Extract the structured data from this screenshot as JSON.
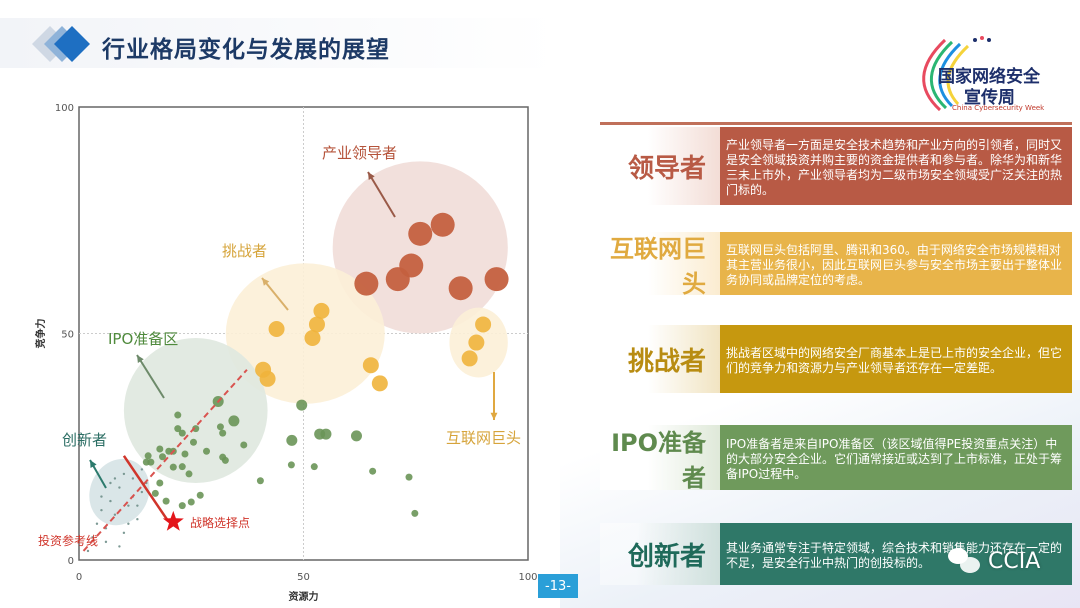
{
  "header": {
    "title": "行业格局变化与发展的展望"
  },
  "logo": {
    "cn_line1": "国家网络安全",
    "cn_line2": "宣传周",
    "en": "China Cybersecurity Week"
  },
  "panels": [
    {
      "label": "领导者",
      "color": "#b85a45",
      "label_color": "#b85a45",
      "text": "产业领导者一方面是安全技术趋势和产业方向的引领者，同时又是安全领域投资并购主要的资金提供者和参与者。除华为和新华三未上市外，产业领导者均为二级市场安全领域受广泛关注的热门标的。"
    },
    {
      "label": "互联网巨头",
      "color": "#e8b44a",
      "label_color": "#e0aa40",
      "text": "互联网巨头包括阿里、腾讯和360。由于网络安全市场规模相对其主营业务很小，因此互联网巨头参与安全市场主要出于整体业务协同或品牌定位的考虑。"
    },
    {
      "label": "挑战者",
      "color": "#c6980f",
      "label_color": "#b88c12",
      "text": "挑战者区域中的网络安全厂商基本上是已上市的安全企业，但它们的竞争力和资源力与产业领导者还存在一定差距。"
    },
    {
      "label": "IPO准备者",
      "color": "#6f9a5c",
      "label_color": "#5f8a4e",
      "text": "IPO准备者是来自IPO准备区（该区域值得PE投资重点关注）中的大部分安全企业。它们通常接近或达到了上市标准，正处于筹备IPO过程中。"
    },
    {
      "label": "创新者",
      "color": "#2f7868",
      "label_color": "#1f6a5a",
      "text": "其业务通常专注于特定领域，综合技术和销售能力还存在一定的不足，是安全行业中热门的创投标的。"
    }
  ],
  "page_number": "-13-",
  "watermark": "CCIA",
  "chart_data": {
    "type": "scatter",
    "xlabel": "资源力",
    "ylabel": "竞争力",
    "xlim": [
      0,
      100
    ],
    "ylim": [
      0,
      100
    ],
    "xticks": [
      "0",
      "50",
      "100"
    ],
    "yticks": [
      "0",
      "50",
      "100"
    ],
    "grid": "dashed lines at 50",
    "series": [
      {
        "group": "leaders",
        "color": "#c4603f",
        "size": "large",
        "points": [
          [
            64,
            61
          ],
          [
            71,
            62
          ],
          [
            74,
            65
          ],
          [
            76,
            72
          ],
          [
            81,
            74
          ],
          [
            85,
            60
          ],
          [
            93,
            62
          ]
        ]
      },
      {
        "group": "challengers",
        "color": "#f0b43c",
        "size": "medium",
        "points": [
          [
            44,
            51
          ],
          [
            54,
            55
          ],
          [
            53,
            52
          ],
          [
            52,
            49
          ],
          [
            41,
            42
          ],
          [
            42,
            40
          ],
          [
            65,
            43
          ],
          [
            67,
            39
          ]
        ]
      },
      {
        "group": "internet_giants",
        "color": "#f0b43c",
        "size": "medium",
        "points": [
          [
            90,
            52
          ],
          [
            88.5,
            48
          ],
          [
            87,
            44.5
          ]
        ]
      },
      {
        "group": "ipo_ready",
        "color": "#6a9558",
        "size": "small",
        "points": [
          [
            31,
            35
          ],
          [
            22,
            32
          ],
          [
            22,
            29
          ],
          [
            23,
            28
          ],
          [
            26,
            29
          ],
          [
            31.5,
            29.4
          ],
          [
            32,
            28
          ],
          [
            34.5,
            30.7
          ],
          [
            36.7,
            25.4
          ],
          [
            25.5,
            26
          ],
          [
            28.4,
            24
          ],
          [
            18,
            24.5
          ],
          [
            20,
            24
          ],
          [
            21,
            24
          ],
          [
            18.6,
            22.8
          ],
          [
            15.4,
            23
          ],
          [
            15,
            21.6
          ],
          [
            16,
            21.6
          ],
          [
            23.6,
            23.4
          ],
          [
            21,
            20.5
          ],
          [
            23,
            20.6
          ],
          [
            24.5,
            19
          ],
          [
            32,
            22.7
          ],
          [
            32.6,
            22
          ],
          [
            40.4,
            17.5
          ],
          [
            18,
            17
          ],
          [
            17,
            14.7
          ],
          [
            19.4,
            13
          ],
          [
            23,
            12
          ],
          [
            25,
            12.8
          ],
          [
            27,
            14.3
          ],
          [
            47.4,
            26.4
          ],
          [
            53.6,
            27.8
          ],
          [
            55,
            27.8
          ],
          [
            61.8,
            27.4
          ],
          [
            47.3,
            21
          ],
          [
            52.4,
            20.6
          ],
          [
            65.4,
            19.6
          ],
          [
            73.5,
            18.3
          ],
          [
            74.8,
            10.3
          ],
          [
            49.6,
            34.2
          ]
        ]
      },
      {
        "group": "innovators",
        "color": "#6f8f8a",
        "size": "tiny",
        "points": [
          [
            3,
            5
          ],
          [
            4,
            8
          ],
          [
            5,
            11
          ],
          [
            6,
            7
          ],
          [
            7,
            13
          ],
          [
            8,
            10
          ],
          [
            9,
            16
          ],
          [
            10,
            6
          ],
          [
            11,
            12
          ],
          [
            12,
            18
          ],
          [
            13,
            9
          ],
          [
            14,
            15
          ],
          [
            5,
            14
          ],
          [
            8,
            18
          ],
          [
            10,
            19
          ],
          [
            12,
            14
          ],
          [
            15,
            17
          ],
          [
            6,
            4
          ],
          [
            9,
            3
          ],
          [
            14,
            20
          ],
          [
            2,
            2
          ],
          [
            11,
            8
          ],
          [
            13,
            12
          ],
          [
            7,
            17
          ]
        ]
      }
    ],
    "regions": [
      {
        "group": "leaders",
        "cx": 76,
        "cy": 69,
        "rx": 19.5,
        "ry": 19,
        "color": "#f1ddd8"
      },
      {
        "group": "challengers",
        "cx": 50.4,
        "cy": 50,
        "rx": 17.7,
        "ry": 15.5,
        "color": "#fcefd7"
      },
      {
        "group": "internet_giants",
        "cx": 89,
        "cy": 48,
        "rx": 6.5,
        "ry": 7.7,
        "color": "#fcefd7"
      },
      {
        "group": "ipo_ready",
        "cx": 26,
        "cy": 33,
        "rx": 16,
        "ry": 16,
        "color": "#dfe8df"
      },
      {
        "group": "innovators",
        "cx": 9,
        "cy": 15,
        "rx": 6.5,
        "ry": 7.5,
        "color": "#d6e3e6"
      }
    ],
    "annotations": {
      "leaders": "产业领导者",
      "challengers": "挑战者",
      "ipo_zone": "IPO准备区",
      "innovators": "创新者",
      "internet_giants": "互联网巨头",
      "investment_line": "投资参考线",
      "strategic_point": "战略选择点"
    },
    "investment_line": [
      [
        1,
        2
      ],
      [
        37.4,
        42
      ]
    ],
    "strategic_line": [
      [
        10,
        23
      ],
      [
        19.7,
        8.8
      ]
    ],
    "strategic_point": [
      21,
      8.4
    ]
  }
}
